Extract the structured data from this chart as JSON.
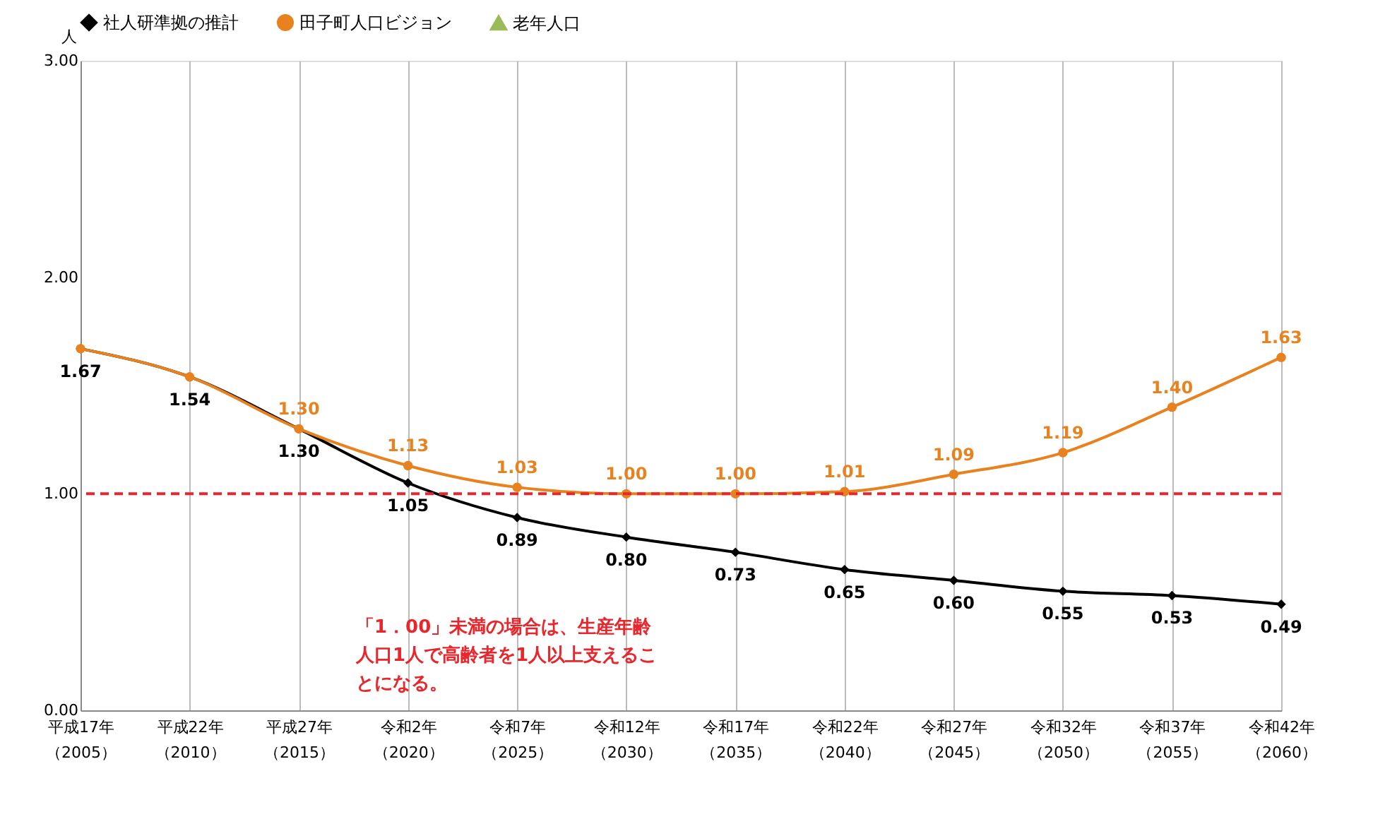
{
  "chart_data": {
    "type": "line",
    "categories": [
      "平成17年（2005）",
      "平成22年（2010）",
      "平成27年（2015）",
      "令和2年（2020）",
      "令和7年（2025）",
      "令和12年（2030）",
      "令和17年（2035）",
      "令和22年（2040）",
      "令和27年（2045）",
      "令和32年（2050）",
      "令和37年（2055）",
      "令和42年（2060）"
    ],
    "ylabel": "人",
    "series": [
      {
        "name": "社人研準拠の推計",
        "color": "#000000",
        "marker": "diamond",
        "values": [
          1.67,
          1.54,
          1.3,
          1.05,
          0.89,
          0.8,
          0.73,
          0.65,
          0.6,
          0.55,
          0.53,
          0.49
        ],
        "value_labels": [
          "1.67",
          "1.54",
          "1.30",
          "1.05",
          "0.89",
          "0.80",
          "0.73",
          "0.65",
          "0.60",
          "0.55",
          "0.53",
          "0.49"
        ]
      },
      {
        "name": "田子町人口ビジョン",
        "color": "#e8821e",
        "marker": "circle",
        "values": [
          1.67,
          1.54,
          1.3,
          1.13,
          1.03,
          1.0,
          1.0,
          1.01,
          1.09,
          1.19,
          1.4,
          1.63
        ],
        "value_labels": [
          null,
          null,
          "1.30",
          "1.13",
          "1.03",
          "1.00",
          "1.00",
          "1.01",
          "1.09",
          "1.19",
          "1.40",
          "1.63"
        ]
      },
      {
        "name": "老年人口",
        "color": "#9bbb59",
        "marker": "triangle",
        "values": [
          null,
          null,
          null,
          null,
          null,
          null,
          null,
          null,
          null,
          null,
          null,
          null
        ]
      }
    ],
    "ylim": [
      0,
      3
    ],
    "yticks": [
      {
        "value": 0,
        "label": "0.00"
      },
      {
        "value": 1,
        "label": "1.00"
      },
      {
        "value": 2,
        "label": "2.00"
      },
      {
        "value": 3,
        "label": "3.00"
      }
    ],
    "grid": "x",
    "legend": "top",
    "ref_lines": [
      {
        "axis": "y",
        "value": 1.0,
        "color": "#e8262b",
        "line_style": "dashed"
      }
    ],
    "annotations": [
      "「1．00」未満の場合は、生産年齢人口1人で高齢者を1人以上支えることになる。"
    ]
  }
}
